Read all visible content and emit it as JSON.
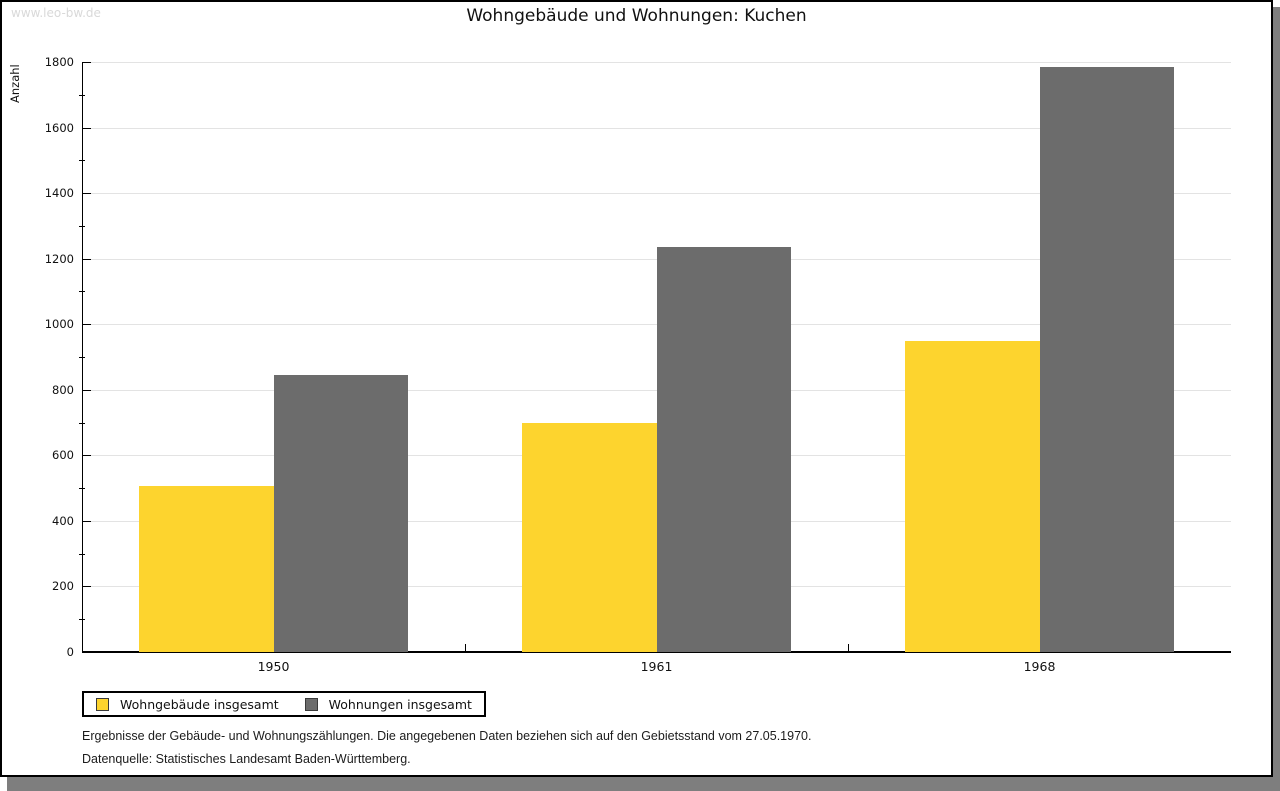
{
  "watermark": "www.leo-bw.de",
  "chart_data": {
    "type": "bar",
    "title": "Wohngebäude und Wohnungen: Kuchen",
    "ylabel": "Anzahl",
    "xlabel": "",
    "categories": [
      "1950",
      "1961",
      "1968"
    ],
    "series": [
      {
        "name": "Wohngebäude insgesamt",
        "color": "#fdd42e",
        "values": [
          507,
          700,
          948
        ]
      },
      {
        "name": "Wohnungen insgesamt",
        "color": "#6c6c6c",
        "values": [
          845,
          1236,
          1786
        ]
      }
    ],
    "ylim": [
      0,
      1800
    ],
    "ytick_step": 200,
    "ytick_minor_step": 100,
    "grid": "horizontal",
    "gridline_color": "#e3e3e3",
    "legend_position": "bottom-left"
  },
  "footnotes": {
    "line1": "Ergebnisse der Gebäude- und Wohnungszählungen. Die angegebenen Daten beziehen sich auf den Gebietsstand vom 27.05.1970.",
    "line2": "Datenquelle: Statistisches Landesamt Baden-Württemberg."
  }
}
